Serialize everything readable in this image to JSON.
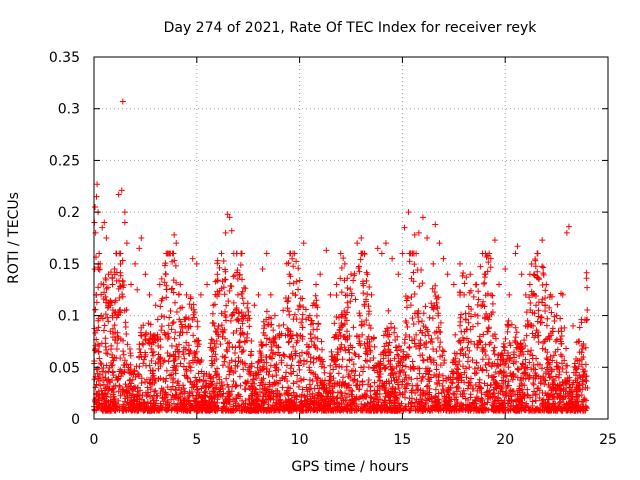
{
  "chart_data": {
    "type": "scatter",
    "title": "Day 274 of 2021, Rate Of TEC Index for receiver reyk",
    "xlabel": "GPS time / hours",
    "ylabel": "ROTI / TECUs",
    "xlim": [
      0,
      25
    ],
    "ylim": [
      0,
      0.35
    ],
    "x_ticks": [
      "0",
      "5",
      "10",
      "15",
      "20",
      "25"
    ],
    "y_ticks": [
      "0",
      "0.05",
      "0.1",
      "0.15",
      "0.2",
      "0.25",
      "0.3",
      "0.35"
    ],
    "grid": true,
    "marker": "plus",
    "color": "#ff0000",
    "series": [
      {
        "points": [
          [
            0.0,
            0.012
          ],
          [
            0.02,
            0.19
          ],
          [
            0.05,
            0.205
          ],
          [
            0.08,
            0.18
          ],
          [
            0.1,
            0.12
          ],
          [
            0.12,
            0.215
          ],
          [
            0.15,
            0.227
          ],
          [
            0.2,
            0.2
          ],
          [
            0.25,
            0.16
          ],
          [
            0.3,
            0.15
          ],
          [
            0.35,
            0.1
          ],
          [
            0.4,
            0.185
          ],
          [
            0.5,
            0.19
          ],
          [
            0.6,
            0.175
          ],
          [
            0.7,
            0.14
          ],
          [
            0.8,
            0.11
          ],
          [
            0.9,
            0.13
          ],
          [
            1.0,
            0.145
          ],
          [
            1.1,
            0.16
          ],
          [
            1.2,
            0.217
          ],
          [
            1.35,
            0.221
          ],
          [
            1.4,
            0.307
          ],
          [
            1.5,
            0.19
          ],
          [
            1.5,
            0.2
          ],
          [
            1.6,
            0.17
          ],
          [
            1.8,
            0.13
          ],
          [
            2.0,
            0.15
          ],
          [
            2.1,
            0.125
          ],
          [
            2.2,
            0.165
          ],
          [
            2.3,
            0.175
          ],
          [
            2.5,
            0.14
          ],
          [
            2.7,
            0.12
          ],
          [
            3.0,
            0.11
          ],
          [
            3.2,
            0.13
          ],
          [
            3.5,
            0.14
          ],
          [
            3.8,
            0.152
          ],
          [
            3.9,
            0.178
          ],
          [
            4.0,
            0.17
          ],
          [
            4.2,
            0.13
          ],
          [
            4.5,
            0.12
          ],
          [
            4.8,
            0.155
          ],
          [
            5.0,
            0.15
          ],
          [
            5.2,
            0.12
          ],
          [
            5.5,
            0.13
          ],
          [
            5.8,
            0.11
          ],
          [
            6.0,
            0.14
          ],
          [
            6.2,
            0.16
          ],
          [
            6.4,
            0.18
          ],
          [
            6.5,
            0.198
          ],
          [
            6.6,
            0.195
          ],
          [
            6.7,
            0.182
          ],
          [
            6.8,
            0.16
          ],
          [
            7.0,
            0.12
          ],
          [
            7.2,
            0.135
          ],
          [
            7.5,
            0.1
          ],
          [
            7.8,
            0.11
          ],
          [
            8.0,
            0.12
          ],
          [
            8.2,
            0.145
          ],
          [
            8.4,
            0.16
          ],
          [
            8.6,
            0.12
          ],
          [
            8.8,
            0.1
          ],
          [
            9.0,
            0.09
          ],
          [
            9.2,
            0.105
          ],
          [
            9.5,
            0.14
          ],
          [
            9.8,
            0.12
          ],
          [
            10.0,
            0.11
          ],
          [
            10.2,
            0.17
          ],
          [
            10.5,
            0.1
          ],
          [
            10.8,
            0.13
          ],
          [
            11.0,
            0.14
          ],
          [
            11.3,
            0.163
          ],
          [
            11.5,
            0.12
          ],
          [
            11.8,
            0.13
          ],
          [
            12.0,
            0.16
          ],
          [
            12.2,
            0.15
          ],
          [
            12.5,
            0.14
          ],
          [
            12.8,
            0.17
          ],
          [
            13.0,
            0.175
          ],
          [
            13.3,
            0.14
          ],
          [
            13.5,
            0.12
          ],
          [
            13.8,
            0.165
          ],
          [
            14.0,
            0.16
          ],
          [
            14.2,
            0.17
          ],
          [
            14.5,
            0.155
          ],
          [
            14.8,
            0.14
          ],
          [
            15.0,
            0.16
          ],
          [
            15.1,
            0.185
          ],
          [
            15.3,
            0.2
          ],
          [
            15.6,
            0.178
          ],
          [
            15.8,
            0.18
          ],
          [
            16.0,
            0.195
          ],
          [
            16.2,
            0.175
          ],
          [
            16.5,
            0.15
          ],
          [
            16.6,
            0.188
          ],
          [
            16.8,
            0.17
          ],
          [
            17.0,
            0.155
          ],
          [
            17.2,
            0.14
          ],
          [
            17.5,
            0.13
          ],
          [
            17.8,
            0.15
          ],
          [
            18.0,
            0.12
          ],
          [
            18.3,
            0.14
          ],
          [
            18.6,
            0.13
          ],
          [
            19.0,
            0.14
          ],
          [
            19.3,
            0.155
          ],
          [
            19.5,
            0.173
          ],
          [
            19.7,
            0.13
          ],
          [
            20.0,
            0.145
          ],
          [
            20.2,
            0.12
          ],
          [
            20.5,
            0.16
          ],
          [
            20.6,
            0.167
          ],
          [
            20.8,
            0.14
          ],
          [
            21.0,
            0.12
          ],
          [
            21.2,
            0.13
          ],
          [
            21.5,
            0.11
          ],
          [
            21.8,
            0.173
          ],
          [
            22.0,
            0.13
          ],
          [
            22.2,
            0.12
          ],
          [
            22.5,
            0.1
          ],
          [
            22.8,
            0.12
          ],
          [
            23.0,
            0.18
          ],
          [
            23.1,
            0.186
          ],
          [
            23.3,
            0.09
          ],
          [
            23.6,
            0.075
          ],
          [
            23.8,
            0.06
          ],
          [
            24.0,
            0.03
          ]
        ]
      }
    ]
  }
}
